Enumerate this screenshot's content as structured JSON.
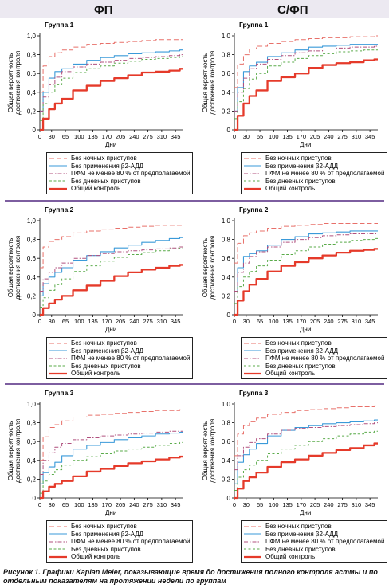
{
  "column_titles": [
    "ФП",
    "С/ФП"
  ],
  "ylabel_lines": [
    "Общая вероятность",
    "достижения контроля"
  ],
  "xlabel": "Дни",
  "caption": "Рисунок 1. Графики Kaplan Meier, показывающие время до достижения полного контроля астмы и по отдельным показателям на протяжении недели по группам",
  "legend": [
    {
      "label": "Без ночных приступов",
      "color": "#e8706a",
      "style": "longdash"
    },
    {
      "label": "Без применения β2-АДД",
      "color": "#3a9ad9",
      "style": "solid"
    },
    {
      "label": "ПФМ не менее 80 % от предполагаемой",
      "color": "#b0507e",
      "style": "dashdot"
    },
    {
      "label": "Без дневных приступов",
      "color": "#5aab4a",
      "style": "dash"
    },
    {
      "label": "Общий контроль",
      "color": "#e53a2a",
      "style": "thick"
    }
  ],
  "chart_data": [
    {
      "type": "line",
      "title": "Группа 1",
      "column": "ФП",
      "xlabel": "Дни",
      "ylabel": "Общая вероятность достижения контроля",
      "xlim": [
        0,
        365
      ],
      "ylim": [
        0,
        1
      ],
      "x_ticks": [
        0,
        30,
        65,
        100,
        135,
        170,
        205,
        240,
        275,
        310,
        345
      ],
      "y_ticks": [
        0,
        0.2,
        0.4,
        0.6,
        0.8,
        1.0
      ],
      "x": [
        0,
        15,
        30,
        45,
        65,
        100,
        135,
        170,
        205,
        240,
        275,
        310,
        345,
        365
      ],
      "series": [
        {
          "name": "Без ночных приступов",
          "values": [
            0.4,
            0.68,
            0.78,
            0.82,
            0.85,
            0.88,
            0.91,
            0.92,
            0.93,
            0.94,
            0.95,
            0.96,
            0.96,
            0.96
          ]
        },
        {
          "name": "Без применения β2-АДД",
          "values": [
            0.2,
            0.4,
            0.55,
            0.62,
            0.65,
            0.7,
            0.74,
            0.77,
            0.79,
            0.81,
            0.82,
            0.83,
            0.84,
            0.85
          ]
        },
        {
          "name": "ПФМ не менее 80 % от предполагаемой",
          "values": [
            0.2,
            0.35,
            0.48,
            0.56,
            0.62,
            0.67,
            0.7,
            0.72,
            0.74,
            0.76,
            0.77,
            0.78,
            0.79,
            0.8
          ]
        },
        {
          "name": "Без дневных приступов",
          "values": [
            0.1,
            0.28,
            0.4,
            0.48,
            0.55,
            0.61,
            0.65,
            0.68,
            0.71,
            0.73,
            0.75,
            0.76,
            0.77,
            0.78
          ]
        },
        {
          "name": "Общий контроль",
          "values": [
            0.0,
            0.12,
            0.22,
            0.28,
            0.33,
            0.42,
            0.47,
            0.52,
            0.55,
            0.58,
            0.61,
            0.62,
            0.63,
            0.65
          ]
        }
      ]
    },
    {
      "type": "line",
      "title": "Группа 1",
      "column": "С/ФП",
      "xlabel": "Дни",
      "ylabel": "Общая вероятность достижения контроля",
      "xlim": [
        0,
        365
      ],
      "ylim": [
        0,
        1
      ],
      "x_ticks": [
        0,
        30,
        65,
        100,
        135,
        170,
        205,
        240,
        275,
        310,
        345
      ],
      "y_ticks": [
        0,
        0.2,
        0.4,
        0.6,
        0.8,
        1.0
      ],
      "x": [
        0,
        15,
        30,
        45,
        65,
        100,
        135,
        170,
        205,
        240,
        275,
        310,
        345,
        365
      ],
      "series": [
        {
          "name": "Без ночных приступов",
          "values": [
            0.45,
            0.7,
            0.8,
            0.86,
            0.89,
            0.92,
            0.94,
            0.96,
            0.97,
            0.98,
            0.98,
            0.99,
            0.99,
            1.0
          ]
        },
        {
          "name": "Без применения β2-АДД",
          "values": [
            0.2,
            0.45,
            0.62,
            0.68,
            0.72,
            0.78,
            0.82,
            0.85,
            0.88,
            0.89,
            0.9,
            0.91,
            0.91,
            0.91
          ]
        },
        {
          "name": "ПФМ не менее 80 % от предполагаемой",
          "values": [
            0.2,
            0.4,
            0.55,
            0.65,
            0.7,
            0.75,
            0.79,
            0.82,
            0.84,
            0.86,
            0.87,
            0.88,
            0.88,
            0.89
          ]
        },
        {
          "name": "Без дневных приступов",
          "values": [
            0.12,
            0.3,
            0.44,
            0.54,
            0.6,
            0.68,
            0.72,
            0.76,
            0.79,
            0.81,
            0.83,
            0.84,
            0.85,
            0.85
          ]
        },
        {
          "name": "Общий контроль",
          "values": [
            0.0,
            0.15,
            0.28,
            0.36,
            0.42,
            0.52,
            0.56,
            0.6,
            0.66,
            0.69,
            0.71,
            0.72,
            0.74,
            0.75
          ]
        }
      ]
    },
    {
      "type": "line",
      "title": "Группа 2",
      "column": "ФП",
      "xlabel": "Дни",
      "ylabel": "Общая вероятность достижения контроля",
      "xlim": [
        0,
        365
      ],
      "ylim": [
        0,
        1
      ],
      "x_ticks": [
        0,
        30,
        65,
        100,
        135,
        170,
        205,
        240,
        275,
        310,
        345
      ],
      "y_ticks": [
        0,
        0.2,
        0.4,
        0.6,
        0.8,
        1.0
      ],
      "x": [
        0,
        15,
        30,
        45,
        65,
        100,
        135,
        170,
        205,
        240,
        275,
        310,
        345,
        365
      ],
      "series": [
        {
          "name": "Без ночных приступов",
          "values": [
            0.5,
            0.72,
            0.78,
            0.8,
            0.83,
            0.87,
            0.89,
            0.91,
            0.92,
            0.93,
            0.94,
            0.95,
            0.95,
            0.95
          ]
        },
        {
          "name": "Без применения β2-АДД",
          "values": [
            0.2,
            0.33,
            0.4,
            0.45,
            0.5,
            0.58,
            0.63,
            0.67,
            0.71,
            0.74,
            0.77,
            0.79,
            0.81,
            0.82
          ]
        },
        {
          "name": "ПФМ не менее 80 % от предполагаемой",
          "values": [
            0.25,
            0.38,
            0.45,
            0.5,
            0.55,
            0.6,
            0.63,
            0.65,
            0.67,
            0.68,
            0.69,
            0.7,
            0.71,
            0.72
          ]
        },
        {
          "name": "Без дневных приступов",
          "values": [
            0.08,
            0.18,
            0.26,
            0.32,
            0.38,
            0.46,
            0.52,
            0.57,
            0.61,
            0.64,
            0.66,
            0.68,
            0.7,
            0.71
          ]
        },
        {
          "name": "Общий контроль",
          "values": [
            0.0,
            0.07,
            0.12,
            0.16,
            0.2,
            0.26,
            0.31,
            0.36,
            0.41,
            0.45,
            0.48,
            0.5,
            0.52,
            0.53
          ]
        }
      ]
    },
    {
      "type": "line",
      "title": "Группа 2",
      "column": "С/ФП",
      "xlabel": "Дни",
      "ylabel": "Общая вероятность достижения контроля",
      "xlim": [
        0,
        365
      ],
      "ylim": [
        0,
        1
      ],
      "x_ticks": [
        0,
        30,
        65,
        100,
        135,
        170,
        205,
        240,
        275,
        310,
        345
      ],
      "y_ticks": [
        0,
        0.2,
        0.4,
        0.6,
        0.8,
        1.0
      ],
      "x": [
        0,
        15,
        30,
        45,
        65,
        100,
        135,
        170,
        205,
        240,
        275,
        310,
        345,
        365
      ],
      "series": [
        {
          "name": "Без ночных приступов",
          "values": [
            0.55,
            0.76,
            0.84,
            0.87,
            0.89,
            0.92,
            0.94,
            0.95,
            0.96,
            0.97,
            0.97,
            0.97,
            0.97,
            0.97
          ]
        },
        {
          "name": "Без применения β2-АДД",
          "values": [
            0.25,
            0.5,
            0.62,
            0.65,
            0.68,
            0.74,
            0.8,
            0.83,
            0.86,
            0.87,
            0.88,
            0.89,
            0.89,
            0.89
          ]
        },
        {
          "name": "ПФМ не менее 80 % от предполагаемой",
          "values": [
            0.25,
            0.45,
            0.55,
            0.62,
            0.67,
            0.72,
            0.77,
            0.8,
            0.82,
            0.84,
            0.85,
            0.86,
            0.86,
            0.86
          ]
        },
        {
          "name": "Без дневных приступов",
          "values": [
            0.12,
            0.3,
            0.4,
            0.46,
            0.52,
            0.58,
            0.64,
            0.68,
            0.72,
            0.75,
            0.77,
            0.79,
            0.8,
            0.81
          ]
        },
        {
          "name": "Общий контроль",
          "values": [
            0.0,
            0.15,
            0.25,
            0.32,
            0.38,
            0.46,
            0.52,
            0.56,
            0.6,
            0.63,
            0.66,
            0.68,
            0.69,
            0.7
          ]
        }
      ]
    },
    {
      "type": "line",
      "title": "Группа 3",
      "column": "ФП",
      "xlabel": "Дни",
      "ylabel": "Общая вероятность достижения контроля",
      "xlim": [
        0,
        365
      ],
      "ylim": [
        0,
        1
      ],
      "x_ticks": [
        0,
        30,
        65,
        100,
        135,
        170,
        205,
        240,
        275,
        310,
        345
      ],
      "y_ticks": [
        0,
        0.2,
        0.4,
        0.6,
        0.8,
        1.0
      ],
      "x": [
        0,
        15,
        30,
        45,
        65,
        100,
        135,
        170,
        205,
        240,
        275,
        310,
        345,
        365
      ],
      "series": [
        {
          "name": "Без ночных приступов",
          "values": [
            0.4,
            0.65,
            0.75,
            0.78,
            0.82,
            0.86,
            0.88,
            0.89,
            0.9,
            0.91,
            0.92,
            0.93,
            0.93,
            0.94
          ]
        },
        {
          "name": "Без применения β2-АДД",
          "values": [
            0.15,
            0.27,
            0.33,
            0.38,
            0.45,
            0.52,
            0.56,
            0.59,
            0.62,
            0.64,
            0.66,
            0.68,
            0.69,
            0.7
          ]
        },
        {
          "name": "ПФМ не менее 80 % от предполагаемой",
          "values": [
            0.25,
            0.4,
            0.48,
            0.54,
            0.58,
            0.62,
            0.64,
            0.66,
            0.67,
            0.68,
            0.69,
            0.7,
            0.71,
            0.71
          ]
        },
        {
          "name": "Без дневных приступов",
          "values": [
            0.05,
            0.18,
            0.25,
            0.3,
            0.35,
            0.4,
            0.44,
            0.47,
            0.5,
            0.52,
            0.54,
            0.56,
            0.58,
            0.59
          ]
        },
        {
          "name": "Общий контроль",
          "values": [
            0.0,
            0.07,
            0.12,
            0.15,
            0.18,
            0.23,
            0.28,
            0.31,
            0.34,
            0.37,
            0.39,
            0.41,
            0.43,
            0.44
          ]
        }
      ]
    },
    {
      "type": "line",
      "title": "Группа 3",
      "column": "С/ФП",
      "xlabel": "Дни",
      "ylabel": "Общая вероятность достижения контроля",
      "xlim": [
        0,
        365
      ],
      "ylim": [
        0,
        1
      ],
      "x_ticks": [
        0,
        30,
        65,
        100,
        135,
        170,
        205,
        240,
        275,
        310,
        345
      ],
      "y_ticks": [
        0,
        0.2,
        0.4,
        0.6,
        0.8,
        1.0
      ],
      "x": [
        0,
        15,
        30,
        45,
        65,
        100,
        135,
        170,
        205,
        240,
        275,
        310,
        345,
        365
      ],
      "series": [
        {
          "name": "Без ночных приступов",
          "values": [
            0.45,
            0.68,
            0.77,
            0.81,
            0.85,
            0.89,
            0.91,
            0.93,
            0.94,
            0.95,
            0.96,
            0.97,
            0.97,
            0.98
          ]
        },
        {
          "name": "Без применения β2-АДД",
          "values": [
            0.15,
            0.38,
            0.46,
            0.52,
            0.58,
            0.66,
            0.72,
            0.75,
            0.77,
            0.79,
            0.8,
            0.81,
            0.82,
            0.83
          ]
        },
        {
          "name": "ПФМ не менее 80 % от предполагаемой",
          "values": [
            0.3,
            0.45,
            0.54,
            0.59,
            0.63,
            0.68,
            0.72,
            0.74,
            0.75,
            0.76,
            0.77,
            0.78,
            0.79,
            0.8
          ]
        },
        {
          "name": "Без дневных приступов",
          "values": [
            0.08,
            0.22,
            0.3,
            0.35,
            0.4,
            0.47,
            0.52,
            0.56,
            0.6,
            0.63,
            0.66,
            0.68,
            0.7,
            0.71
          ]
        },
        {
          "name": "Общий контроль",
          "values": [
            0.0,
            0.1,
            0.18,
            0.22,
            0.27,
            0.33,
            0.38,
            0.41,
            0.45,
            0.48,
            0.51,
            0.53,
            0.56,
            0.58
          ]
        }
      ]
    }
  ]
}
